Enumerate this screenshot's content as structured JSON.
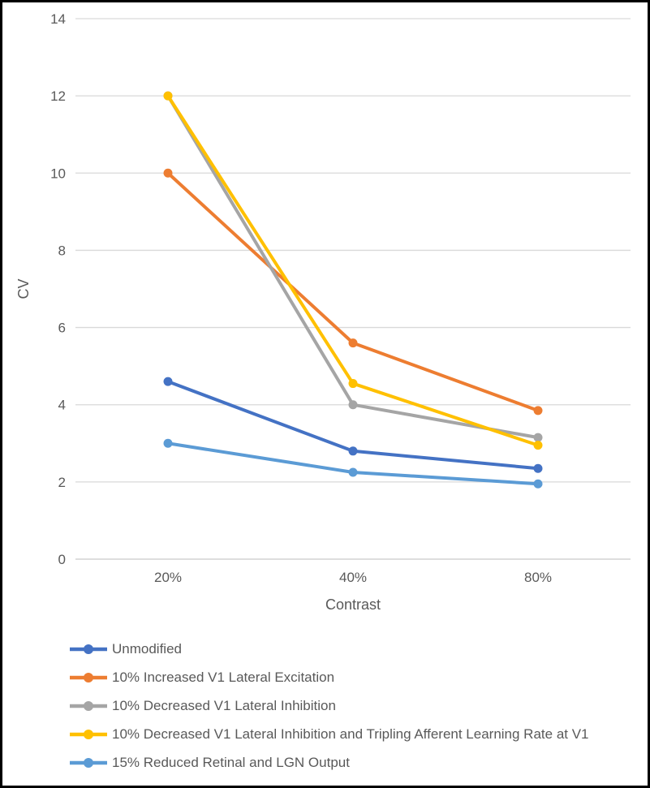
{
  "chart_data": {
    "type": "line",
    "categories": [
      "20%",
      "40%",
      "80%"
    ],
    "series": [
      {
        "name": "Unmodified",
        "color": "#4472C4",
        "values": [
          4.6,
          2.8,
          2.35
        ]
      },
      {
        "name": "10% Increased V1 Lateral Excitation",
        "color": "#ED7D31",
        "values": [
          10.0,
          5.6,
          3.85
        ]
      },
      {
        "name": "10% Decreased V1 Lateral Inhibition",
        "color": "#A5A5A5",
        "values": [
          12.0,
          4.0,
          3.15
        ]
      },
      {
        "name": "10% Decreased V1 Lateral Inhibition and Tripling Afferent Learning Rate at V1",
        "color": "#FFC000",
        "values": [
          12.0,
          4.55,
          2.95
        ]
      },
      {
        "name": "15% Reduced Retinal and LGN Output",
        "color": "#5B9BD5",
        "values": [
          3.0,
          2.25,
          1.95
        ]
      }
    ],
    "title": "",
    "xlabel": "Contrast",
    "ylabel": "CV",
    "ylim": [
      0,
      14
    ],
    "yticks": [
      0,
      2,
      4,
      6,
      8,
      10,
      12,
      14
    ],
    "grid": true,
    "legend_position": "bottom-left",
    "marker": "circle",
    "line_width": 4
  },
  "style": {
    "grid_color": "#D9D9D9",
    "zero_line_color": "#C9C9C9",
    "axis_text_color": "#595959",
    "frame_border_color": "#000000",
    "background_color": "#FFFFFF"
  }
}
